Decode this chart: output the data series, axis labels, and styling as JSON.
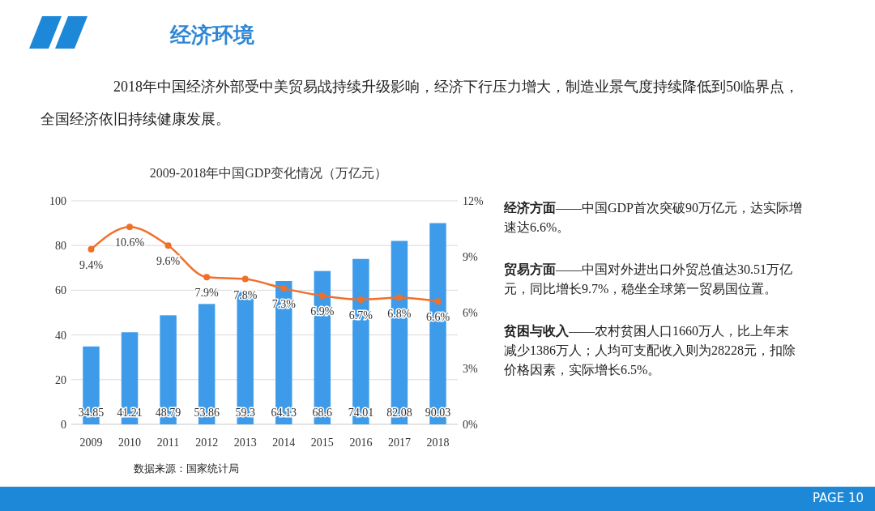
{
  "chart_data": {
    "type": "bar",
    "title": "2009-2018年中国GDP变化情况（万亿元）",
    "categories": [
      "2009",
      "2010",
      "2011",
      "2012",
      "2013",
      "2014",
      "2015",
      "2016",
      "2017",
      "2018"
    ],
    "series": [
      {
        "color": "#3d9be9",
        "values": [
          34.85,
          41.21,
          48.79,
          53.86,
          59.3,
          64.13,
          68.6,
          74.01,
          82.08,
          90.03
        ],
        "value_labels": [
          "34.85",
          "41.21",
          "48.79",
          "53.86",
          "59.3",
          "64.13",
          "68.6",
          "74.01",
          "82.08",
          "90.03"
        ]
      },
      {
        "type": "line",
        "axis": "y2",
        "color": "#f0702a",
        "marker": "circle",
        "values": [
          9.4,
          10.6,
          9.6,
          7.9,
          7.8,
          7.3,
          6.9,
          6.7,
          6.8,
          6.6
        ],
        "value_labels": [
          "9.4%",
          "10.6%",
          "9.6%",
          "7.9%",
          "7.8%",
          "7.3%",
          "6.9%",
          "6.7%",
          "6.8%",
          "6.6%"
        ]
      }
    ],
    "ylim": [
      0,
      100
    ],
    "yticks": [
      0,
      20,
      40,
      60,
      80,
      100
    ],
    "y2lim": [
      0,
      12
    ],
    "y2ticks": [
      {
        "value": 0,
        "label": "0%"
      },
      {
        "value": 3,
        "label": "3%"
      },
      {
        "value": 6,
        "label": "6%"
      },
      {
        "value": 9,
        "label": "9%"
      },
      {
        "value": 12,
        "label": "12%"
      }
    ],
    "grid": "y",
    "annotations": [
      "经济环境",
      "2018年中国经济外部受中美贸易战持续升级影响，经济下行压力增大，制造业景气度持续降低到50临界点，全国经济依旧持续健康发展。",
      "经济方面——中国GDP首次突破90万亿元，达实际增速达6.6%。",
      "贸易方面——中国对外进出口外贸总值达30.51万亿元，同比增长9.7%，稳坐全球第一贸易国位置。",
      "贫困与收入——农村贫困人口1660万人，比上年末减少1386万人；人均可支配收入则为28228元，扣除价格因素，实际增长6.5%。",
      "数据来源：国家统计局",
      "PAGE 10"
    ]
  }
}
